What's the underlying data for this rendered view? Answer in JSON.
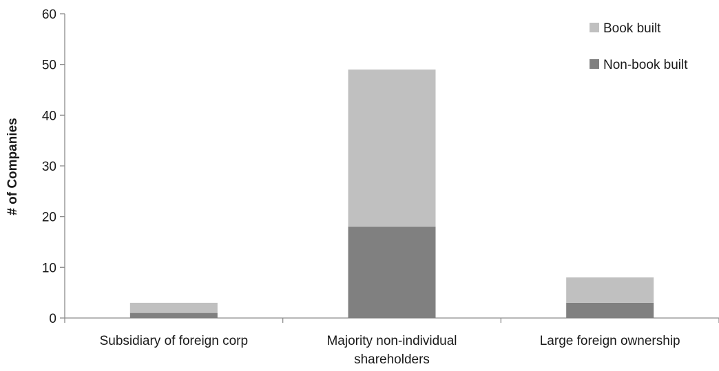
{
  "chart_data": {
    "type": "bar",
    "stacked": true,
    "categories": [
      [
        "Subsidiary of foreign corp"
      ],
      [
        "Majority non-individual",
        "shareholders"
      ],
      [
        "Large foreign ownership"
      ]
    ],
    "series": [
      {
        "name": "Non-book built",
        "values": [
          1,
          18,
          3
        ],
        "color": "#808080"
      },
      {
        "name": "Book built",
        "values": [
          2,
          31,
          5
        ],
        "color": "#c0c0c0"
      }
    ],
    "title": "",
    "xlabel": "",
    "ylabel": "# of Companies",
    "ylim": [
      0,
      60
    ],
    "yticks": [
      0,
      10,
      20,
      30,
      40,
      50,
      60
    ],
    "grid": false,
    "legend_position": "top-right",
    "legend_order": [
      "Book built",
      "Non-book built"
    ]
  }
}
